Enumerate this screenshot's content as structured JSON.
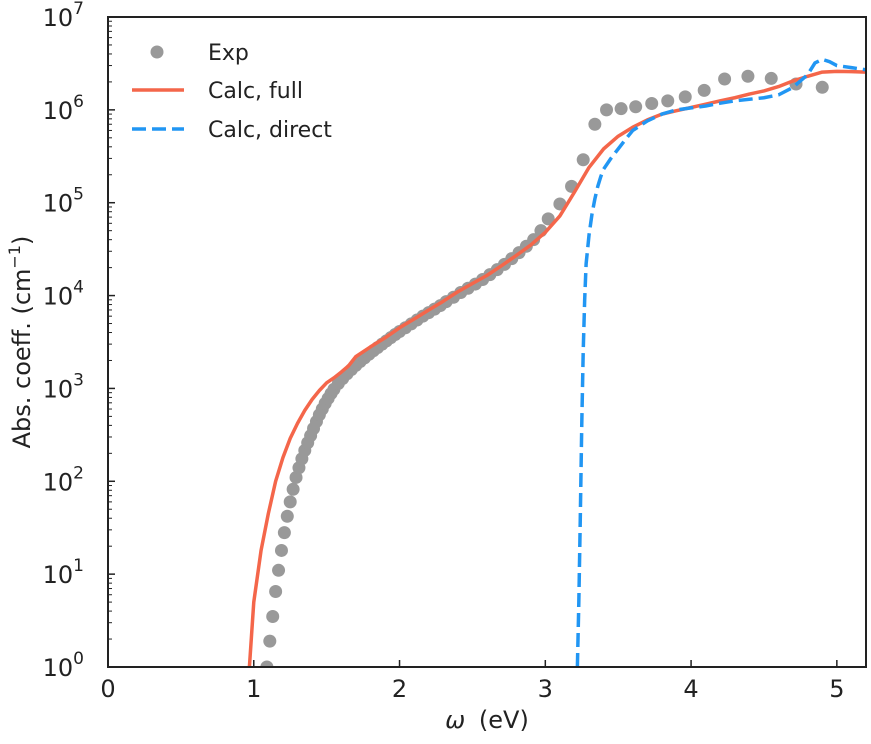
{
  "chart_data": {
    "type": "line",
    "xlabel_symbol": "ω",
    "xlabel_unit": "(eV)",
    "ylabel_text": "Abs. coeff. (cm",
    "ylabel_exp": "−1",
    "ylabel_close": ")",
    "yscale": "log",
    "xlim": [
      0,
      5.2
    ],
    "ylim": [
      1,
      10000000
    ],
    "xticks": [
      0,
      1,
      2,
      3,
      4,
      5
    ],
    "xtick_labels": [
      "0",
      "1",
      "2",
      "3",
      "4",
      "5"
    ],
    "ytick_exponents": [
      0,
      1,
      2,
      3,
      4,
      5,
      6,
      7
    ],
    "ytick_base": "10",
    "ytick_exp_labels": [
      "0",
      "1",
      "2",
      "3",
      "4",
      "5",
      "6",
      "7"
    ],
    "legend_position": "top-left",
    "series": [
      {
        "name": "Exp",
        "style": "scatter",
        "color": "#999999",
        "x": [
          1.09,
          1.11,
          1.13,
          1.15,
          1.17,
          1.19,
          1.21,
          1.23,
          1.25,
          1.27,
          1.29,
          1.31,
          1.33,
          1.35,
          1.37,
          1.39,
          1.41,
          1.43,
          1.45,
          1.47,
          1.49,
          1.51,
          1.53,
          1.55,
          1.58,
          1.61,
          1.64,
          1.67,
          1.7,
          1.73,
          1.76,
          1.79,
          1.82,
          1.85,
          1.88,
          1.91,
          1.94,
          1.97,
          2.0,
          2.04,
          2.08,
          2.12,
          2.16,
          2.2,
          2.24,
          2.28,
          2.32,
          2.37,
          2.42,
          2.47,
          2.52,
          2.57,
          2.62,
          2.67,
          2.72,
          2.77,
          2.82,
          2.87,
          2.92,
          2.97,
          3.02,
          3.1,
          3.18,
          3.26,
          3.34,
          3.42,
          3.52,
          3.62,
          3.73,
          3.84,
          3.96,
          4.09,
          4.23,
          4.39,
          4.55,
          4.72,
          4.9
        ],
        "y": [
          1,
          1.9,
          3.5,
          6.5,
          11,
          18,
          28,
          42,
          60,
          82,
          110,
          140,
          175,
          215,
          260,
          310,
          370,
          440,
          520,
          600,
          690,
          780,
          880,
          980,
          1130,
          1280,
          1440,
          1600,
          1770,
          1950,
          2130,
          2330,
          2540,
          2760,
          3000,
          3250,
          3520,
          3810,
          4100,
          4500,
          4950,
          5450,
          6000,
          6550,
          7150,
          7800,
          8600,
          9600,
          10800,
          12000,
          13300,
          14900,
          16800,
          19000,
          21700,
          25000,
          29000,
          34000,
          40000,
          50000,
          67000,
          97000,
          150000,
          290000,
          700000,
          1000000,
          1030000,
          1080000,
          1170000,
          1250000,
          1380000,
          1620000,
          2150000,
          2300000,
          2180000,
          1900000,
          1750000
        ]
      },
      {
        "name": "Calc, full",
        "style": "solid",
        "color": "#f4664a",
        "x": [
          0.97,
          1.0,
          1.05,
          1.1,
          1.15,
          1.2,
          1.25,
          1.3,
          1.35,
          1.4,
          1.45,
          1.5,
          1.55,
          1.6,
          1.65,
          1.7,
          1.8,
          1.9,
          2.0,
          2.1,
          2.2,
          2.3,
          2.4,
          2.5,
          2.6,
          2.7,
          2.8,
          2.9,
          3.0,
          3.1,
          3.2,
          3.3,
          3.4,
          3.5,
          3.6,
          3.7,
          3.8,
          3.9,
          4.0,
          4.1,
          4.2,
          4.3,
          4.4,
          4.5,
          4.6,
          4.7,
          4.8,
          4.9,
          5.0,
          5.1,
          5.2
        ],
        "y": [
          1,
          5,
          18,
          45,
          100,
          180,
          290,
          420,
          580,
          760,
          950,
          1150,
          1300,
          1500,
          1750,
          2200,
          2800,
          3500,
          4500,
          5600,
          7000,
          8700,
          11000,
          13500,
          16500,
          21000,
          27000,
          35000,
          48000,
          72000,
          130000,
          240000,
          380000,
          520000,
          650000,
          780000,
          900000,
          980000,
          1060000,
          1150000,
          1250000,
          1350000,
          1480000,
          1600000,
          1780000,
          2050000,
          2300000,
          2550000,
          2600000,
          2580000,
          2550000
        ]
      },
      {
        "name": "Calc, direct",
        "style": "dashed",
        "color": "#2196f3",
        "x": [
          3.22,
          3.23,
          3.24,
          3.25,
          3.26,
          3.27,
          3.28,
          3.3,
          3.32,
          3.34,
          3.36,
          3.38,
          3.4,
          3.45,
          3.5,
          3.55,
          3.6,
          3.7,
          3.8,
          3.9,
          4.0,
          4.1,
          4.2,
          4.3,
          4.4,
          4.5,
          4.6,
          4.7,
          4.8,
          4.85,
          4.9,
          4.95,
          5.0,
          5.1,
          5.2
        ],
        "y": [
          1,
          5,
          40,
          400,
          2500,
          9000,
          22000,
          45000,
          75000,
          110000,
          150000,
          190000,
          230000,
          300000,
          380000,
          480000,
          600000,
          760000,
          900000,
          1000000,
          1050000,
          1100000,
          1180000,
          1250000,
          1300000,
          1350000,
          1450000,
          1750000,
          2400000,
          3200000,
          3500000,
          3300000,
          3000000,
          2850000,
          2700000
        ]
      }
    ]
  }
}
